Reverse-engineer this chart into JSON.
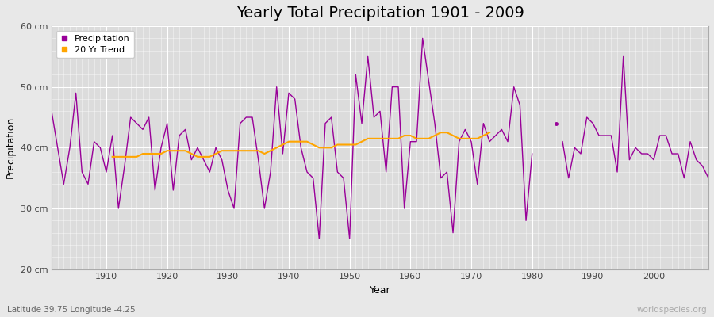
{
  "title": "Yearly Total Precipitation 1901 - 2009",
  "xlabel": "Year",
  "ylabel": "Precipitation",
  "subtitle": "Latitude 39.75 Longitude -4.25",
  "watermark": "worldspecies.org",
  "ylim": [
    20,
    60
  ],
  "yticks": [
    20,
    30,
    40,
    50,
    60
  ],
  "ytick_labels": [
    "20 cm",
    "30 cm",
    "40 cm",
    "50 cm",
    "60 cm"
  ],
  "years": [
    1901,
    1902,
    1903,
    1904,
    1905,
    1906,
    1907,
    1908,
    1909,
    1910,
    1911,
    1912,
    1913,
    1914,
    1915,
    1916,
    1917,
    1918,
    1919,
    1920,
    1921,
    1922,
    1923,
    1924,
    1925,
    1926,
    1927,
    1928,
    1929,
    1930,
    1931,
    1932,
    1933,
    1934,
    1935,
    1936,
    1937,
    1938,
    1939,
    1940,
    1941,
    1942,
    1943,
    1944,
    1945,
    1946,
    1947,
    1948,
    1949,
    1950,
    1951,
    1952,
    1953,
    1954,
    1955,
    1956,
    1957,
    1958,
    1959,
    1960,
    1961,
    1962,
    1963,
    1964,
    1965,
    1966,
    1967,
    1968,
    1969,
    1970,
    1971,
    1972,
    1973,
    1974,
    1975,
    1976,
    1977,
    1978,
    1979,
    1980
  ],
  "precip": [
    46,
    40,
    34,
    40,
    49,
    36,
    34,
    41,
    40,
    36,
    42,
    30,
    37,
    45,
    44,
    43,
    45,
    33,
    40,
    44,
    33,
    42,
    43,
    38,
    40,
    38,
    36,
    40,
    38,
    33,
    30,
    44,
    45,
    45,
    38,
    30,
    36,
    50,
    39,
    49,
    48,
    40,
    36,
    35,
    25,
    44,
    45,
    36,
    35,
    25,
    52,
    44,
    55,
    45,
    46,
    36,
    50,
    50,
    30,
    41,
    41,
    58,
    51,
    44,
    35,
    36,
    26,
    41,
    43,
    41,
    34,
    44,
    41,
    42,
    43,
    41,
    50,
    47,
    28,
    39
  ],
  "years2": [
    1985,
    1986,
    1987,
    1988,
    1989,
    1990,
    1991,
    1992,
    1993,
    1994,
    1995,
    1996,
    1997,
    1998,
    1999,
    2000,
    2001,
    2002,
    2003,
    2004,
    2005,
    2006,
    2007,
    2008,
    2009
  ],
  "precip2": [
    41,
    35,
    40,
    39,
    45,
    44,
    42,
    42,
    42,
    36,
    55,
    38,
    40,
    39,
    39,
    38,
    42,
    42,
    39,
    39,
    35,
    41,
    38,
    37,
    35
  ],
  "isolated_year": 1984,
  "isolated_value": 44,
  "trend_years": [
    1911,
    1912,
    1913,
    1914,
    1915,
    1916,
    1917,
    1918,
    1919,
    1920,
    1921,
    1922,
    1923,
    1924,
    1925,
    1926,
    1927,
    1928,
    1929,
    1930,
    1931,
    1932,
    1933,
    1934,
    1935,
    1936,
    1937,
    1938,
    1939,
    1940,
    1941,
    1942,
    1943,
    1944,
    1945,
    1946,
    1947,
    1948,
    1949,
    1950,
    1951,
    1952,
    1953,
    1954,
    1955,
    1956,
    1957,
    1958,
    1959,
    1960,
    1961,
    1962,
    1963,
    1964,
    1965,
    1966,
    1967,
    1968,
    1969,
    1970,
    1971,
    1972,
    1973
  ],
  "trend_values": [
    38.5,
    38.5,
    38.5,
    38.5,
    38.5,
    39.0,
    39.0,
    39.0,
    39.0,
    39.5,
    39.5,
    39.5,
    39.5,
    39.0,
    38.5,
    38.5,
    38.5,
    39.0,
    39.5,
    39.5,
    39.5,
    39.5,
    39.5,
    39.5,
    39.5,
    39.0,
    39.5,
    40.0,
    40.5,
    41.0,
    41.0,
    41.0,
    41.0,
    40.5,
    40.0,
    40.0,
    40.0,
    40.5,
    40.5,
    40.5,
    40.5,
    41.0,
    41.5,
    41.5,
    41.5,
    41.5,
    41.5,
    41.5,
    42.0,
    42.0,
    41.5,
    41.5,
    41.5,
    42.0,
    42.5,
    42.5,
    42.0,
    41.5,
    41.5,
    41.5,
    41.5,
    42.0,
    42.5
  ],
  "precip_color": "#990099",
  "trend_color": "#FFA500",
  "bg_color": "#E8E8E8",
  "plot_bg_color": "#DCDCDC",
  "grid_color": "#FFFFFF",
  "title_fontsize": 14,
  "label_fontsize": 9,
  "tick_fontsize": 8
}
